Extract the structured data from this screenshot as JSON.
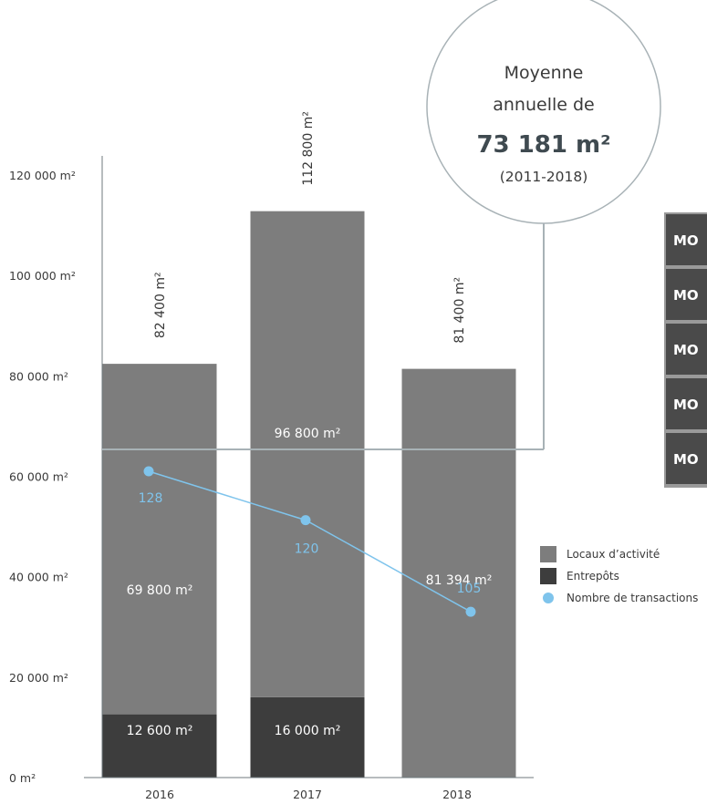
{
  "chart_data": {
    "type": "bar",
    "stacked": true,
    "categories": [
      "2016",
      "2017",
      "2018"
    ],
    "series": [
      {
        "name": "Entrepôts",
        "values": [
          12600,
          16000,
          0
        ],
        "color": "#3d3d3d",
        "labels": [
          "12 600 m²",
          "16 000 m²",
          ""
        ]
      },
      {
        "name": "Locaux d’activité",
        "values": [
          69800,
          96800,
          81400
        ],
        "color": "#7d7d7d",
        "labels": [
          "69 800 m²",
          "96 800 m²",
          "81 394 m²"
        ]
      },
      {
        "name": "Nombre de transactions",
        "type": "line",
        "axis": "secondary",
        "values": [
          128,
          120,
          105
        ],
        "color": "#7fc4ec",
        "labels": [
          "128",
          "120",
          "105"
        ]
      }
    ],
    "totals": [
      82400,
      112800,
      81400
    ],
    "total_labels": [
      "82 400 m²",
      "112 800 m²",
      "81 400 m²"
    ],
    "reference_line": {
      "value": 73181
    },
    "ylim": [
      0,
      120000
    ],
    "yticks": [
      0,
      20000,
      40000,
      60000,
      80000,
      100000,
      120000
    ],
    "ytick_labels": [
      "0 m²",
      "20 000 m²",
      "40 000 m²",
      "60 000 m²",
      "80 000 m²",
      "100 000 m²",
      "120 000 m²"
    ],
    "legend": {
      "position": "right"
    },
    "grid": false
  },
  "callout": {
    "line1": "Moyenne",
    "line2": "annuelle de",
    "value": "73 181 m²",
    "period": "(2011-2018)"
  },
  "side_items": [
    "MO",
    "MO",
    "MO",
    "MO",
    "MO"
  ],
  "colors": {
    "entrepots": "#3d3d3d",
    "locaux": "#7d7d7d",
    "transactions": "#7fc4ec",
    "reference": "#a8b2b6",
    "axis": "#6f7a7e",
    "side_box": "#4a4a4a"
  }
}
